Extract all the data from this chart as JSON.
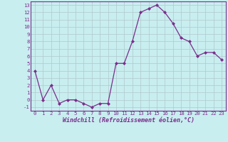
{
  "x": [
    0,
    1,
    2,
    3,
    4,
    5,
    6,
    7,
    8,
    9,
    10,
    11,
    12,
    13,
    14,
    15,
    16,
    17,
    18,
    19,
    20,
    21,
    22,
    23
  ],
  "y": [
    4,
    0,
    2,
    -0.5,
    0,
    0,
    -0.5,
    -1,
    -0.5,
    -0.5,
    5,
    5,
    8,
    12,
    12.5,
    13,
    12,
    10.5,
    8.5,
    8,
    6,
    6.5,
    6.5,
    5.5
  ],
  "line_color": "#7b2d8b",
  "marker": "D",
  "marker_size": 2.0,
  "bg_color": "#c8eef0",
  "grid_color": "#b0c8cc",
  "xlabel": "Windchill (Refroidissement éolien,°C)",
  "xlim": [
    -0.5,
    23.5
  ],
  "ylim": [
    -1.5,
    13.5
  ],
  "yticks": [
    -1,
    0,
    1,
    2,
    3,
    4,
    5,
    6,
    7,
    8,
    9,
    10,
    11,
    12,
    13
  ],
  "xticks": [
    0,
    1,
    2,
    3,
    4,
    5,
    6,
    7,
    8,
    9,
    10,
    11,
    12,
    13,
    14,
    15,
    16,
    17,
    18,
    19,
    20,
    21,
    22,
    23
  ],
  "tick_fontsize": 5.2,
  "xlabel_fontsize": 6.0,
  "line_width": 0.9
}
